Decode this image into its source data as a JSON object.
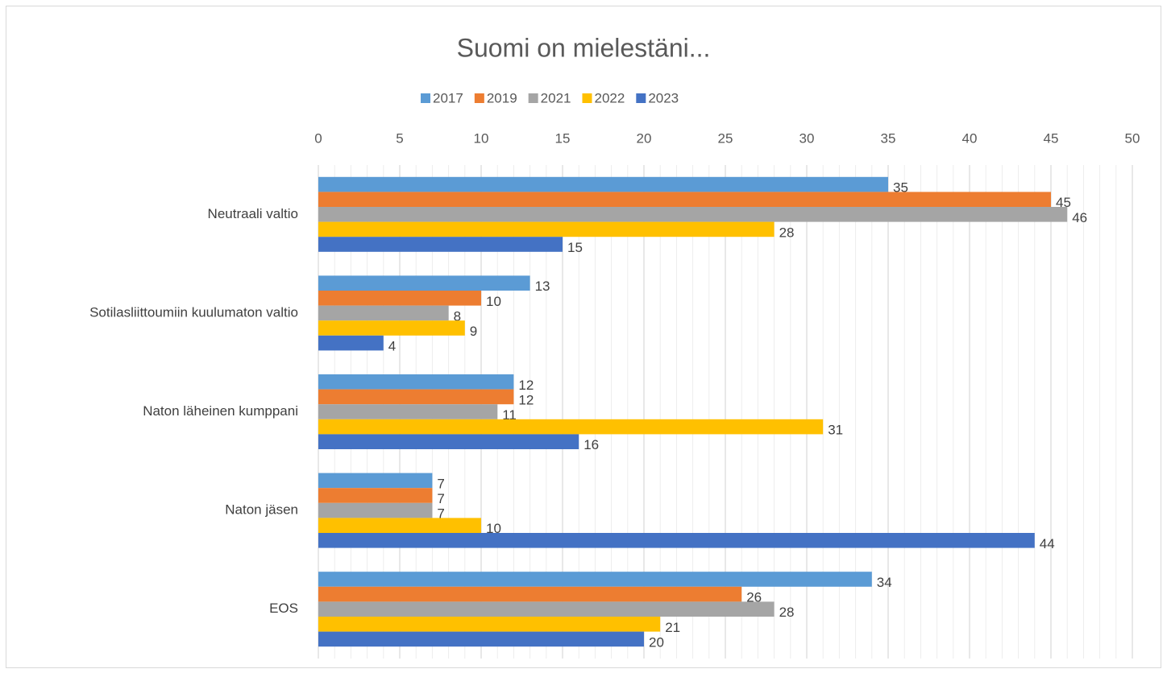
{
  "chart_data": {
    "type": "bar",
    "orientation": "horizontal",
    "title": "Suomi on mielestäni...",
    "categories": [
      "Neutraali valtio",
      "Sotilasliittoumiin kuulumaton valtio",
      "Naton läheinen kumppani",
      "Naton jäsen",
      "EOS"
    ],
    "series": [
      {
        "name": "2017",
        "color": "#5b9bd5",
        "values": [
          35,
          13,
          12,
          7,
          34
        ]
      },
      {
        "name": "2019",
        "color": "#ed7d31",
        "values": [
          45,
          10,
          12,
          7,
          26
        ]
      },
      {
        "name": "2021",
        "color": "#a5a5a5",
        "values": [
          46,
          8,
          11,
          7,
          28
        ]
      },
      {
        "name": "2022",
        "color": "#ffc000",
        "values": [
          28,
          9,
          31,
          10,
          21
        ]
      },
      {
        "name": "2023",
        "color": "#4472c4",
        "values": [
          15,
          4,
          16,
          44,
          20
        ]
      }
    ],
    "xlim": [
      0,
      50
    ],
    "xticks": [
      0,
      5,
      10,
      15,
      20,
      25,
      30,
      35,
      40,
      45,
      50
    ],
    "grid": true,
    "minor_grid": true,
    "legend": "top"
  }
}
